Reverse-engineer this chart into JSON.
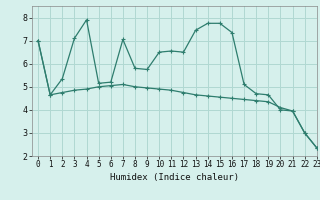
{
  "xlabel": "Humidex (Indice chaleur)",
  "bg_color": "#d6f0ec",
  "grid_color": "#b0d8d2",
  "line_color": "#2e7d6e",
  "xlim": [
    -0.5,
    23
  ],
  "ylim": [
    2,
    8.5
  ],
  "yticks": [
    2,
    3,
    4,
    5,
    6,
    7,
    8
  ],
  "xticks": [
    0,
    1,
    2,
    3,
    4,
    5,
    6,
    7,
    8,
    9,
    10,
    11,
    12,
    13,
    14,
    15,
    16,
    17,
    18,
    19,
    20,
    21,
    22,
    23
  ],
  "line1_x": [
    0,
    1,
    2,
    3,
    4,
    5,
    6,
    7,
    8,
    9,
    10,
    11,
    12,
    13,
    14,
    15,
    16,
    17,
    18,
    19,
    20,
    21,
    22,
    23
  ],
  "line1_y": [
    7.0,
    4.65,
    5.35,
    7.1,
    7.9,
    5.15,
    5.2,
    7.05,
    5.8,
    5.75,
    6.5,
    6.55,
    6.5,
    7.45,
    7.75,
    7.75,
    7.35,
    5.1,
    4.7,
    4.65,
    4.0,
    3.95,
    3.0,
    2.35
  ],
  "line2_x": [
    0,
    1,
    2,
    3,
    4,
    5,
    6,
    7,
    8,
    9,
    10,
    11,
    12,
    13,
    14,
    15,
    16,
    17,
    18,
    19,
    20,
    21,
    22,
    23
  ],
  "line2_y": [
    7.0,
    4.65,
    4.75,
    4.85,
    4.9,
    5.0,
    5.05,
    5.1,
    5.0,
    4.95,
    4.9,
    4.85,
    4.75,
    4.65,
    4.6,
    4.55,
    4.5,
    4.45,
    4.4,
    4.35,
    4.1,
    3.95,
    3.0,
    2.35
  ],
  "xlabel_fontsize": 6.5,
  "tick_fontsize": 5.5
}
